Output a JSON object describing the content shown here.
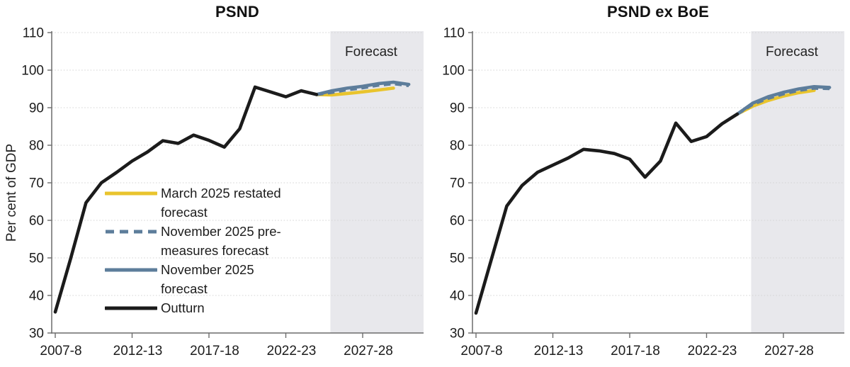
{
  "accent_colors": {
    "outturn": "#1b1b1b",
    "march_forecast": "#e9c42d",
    "november_forecast": "#5d7d9b",
    "forecast_band": "#e8e8ec",
    "gridline": "#d5d5d5",
    "axis": "#6b6b6b",
    "text": "#1c1c1c"
  },
  "chart_data": [
    {
      "type": "line",
      "title": "PSND",
      "xlabel": "",
      "ylabel": "Per cent of GDP",
      "forecast_label": "Forecast",
      "ylim": [
        30,
        110
      ],
      "ytick_step": 10,
      "grid": "dotted-horizontal",
      "legend_position": "inside-left-bottom",
      "forecast_band_start": "2025-26",
      "categories": [
        "2007-08",
        "2008-09",
        "2009-10",
        "2010-11",
        "2011-12",
        "2012-13",
        "2013-14",
        "2014-15",
        "2015-16",
        "2016-17",
        "2017-18",
        "2018-19",
        "2019-20",
        "2020-21",
        "2021-22",
        "2022-23",
        "2023-24",
        "2024-25",
        "2025-26",
        "2026-27",
        "2027-28",
        "2028-29",
        "2029-30",
        "2030-31"
      ],
      "xtick_labels": [
        "2007-8",
        "2012-13",
        "2017-18",
        "2022-23",
        "2027-28"
      ],
      "xtick_indices": [
        0,
        5,
        10,
        15,
        20
      ],
      "series": [
        {
          "name": "March 2025 restated forecast",
          "color": "#e9c42d",
          "style": "solid",
          "start_year": "2024-25",
          "start_index": 17,
          "values": [
            93.5,
            93.4,
            93.8,
            94.2,
            94.7,
            95.2
          ]
        },
        {
          "name": "November 2025 pre-measures forecast",
          "color": "#5d7d9b",
          "style": "dashed",
          "start_year": "2024-25",
          "start_index": 17,
          "values": [
            93.5,
            94.1,
            94.8,
            95.3,
            96.0,
            96.4,
            95.9
          ]
        },
        {
          "name": "November 2025 forecast",
          "color": "#5d7d9b",
          "style": "solid",
          "start_year": "2024-25",
          "start_index": 17,
          "values": [
            93.5,
            94.5,
            95.2,
            95.7,
            96.4,
            96.8,
            96.2
          ]
        },
        {
          "name": "Outturn",
          "color": "#1b1b1b",
          "style": "solid",
          "start_year": "2007-08",
          "start_index": 0,
          "values": [
            35.6,
            49.8,
            64.7,
            70.0,
            72.8,
            75.8,
            78.2,
            81.2,
            80.5,
            82.7,
            81.3,
            79.5,
            84.4,
            95.5,
            94.2,
            92.9,
            94.5,
            93.5
          ]
        }
      ]
    },
    {
      "type": "line",
      "title": "PSND ex BoE",
      "xlabel": "",
      "ylabel": "",
      "forecast_label": "Forecast",
      "ylim": [
        30,
        110
      ],
      "ytick_step": 10,
      "grid": "dotted-horizontal",
      "legend_position": "none",
      "forecast_band_start": "2025-26",
      "categories": [
        "2007-08",
        "2008-09",
        "2009-10",
        "2010-11",
        "2011-12",
        "2012-13",
        "2013-14",
        "2014-15",
        "2015-16",
        "2016-17",
        "2017-18",
        "2018-19",
        "2019-20",
        "2020-21",
        "2021-22",
        "2022-23",
        "2023-24",
        "2024-25",
        "2025-26",
        "2026-27",
        "2027-28",
        "2028-29",
        "2029-30",
        "2030-31"
      ],
      "xtick_labels": [
        "2007-8",
        "2012-13",
        "2017-18",
        "2022-23",
        "2027-28"
      ],
      "xtick_indices": [
        0,
        5,
        10,
        15,
        20
      ],
      "series": [
        {
          "name": "March 2025 restated forecast",
          "color": "#e9c42d",
          "style": "solid",
          "start_year": "2024-25",
          "start_index": 17,
          "values": [
            88.3,
            90.4,
            91.9,
            93.1,
            94.0,
            94.6
          ]
        },
        {
          "name": "November 2025 pre-measures forecast",
          "color": "#5d7d9b",
          "style": "dashed",
          "start_year": "2024-25",
          "start_index": 17,
          "values": [
            88.3,
            90.9,
            92.5,
            93.7,
            94.6,
            95.2,
            95.1
          ]
        },
        {
          "name": "November 2025 forecast",
          "color": "#5d7d9b",
          "style": "solid",
          "start_year": "2024-25",
          "start_index": 17,
          "values": [
            88.3,
            91.2,
            92.9,
            94.1,
            95.0,
            95.6,
            95.4
          ]
        },
        {
          "name": "Outturn",
          "color": "#1b1b1b",
          "style": "solid",
          "start_year": "2007-08",
          "start_index": 0,
          "values": [
            35.3,
            49.6,
            63.8,
            69.3,
            72.8,
            74.7,
            76.6,
            78.9,
            78.5,
            77.8,
            76.3,
            71.5,
            75.8,
            85.9,
            81.0,
            82.3,
            85.7,
            88.3
          ]
        }
      ]
    }
  ],
  "legend": {
    "chart_index": 0,
    "items": [
      {
        "series_index": 0,
        "label": "March 2025 restated forecast"
      },
      {
        "series_index": 1,
        "label": "November 2025 pre-measures forecast"
      },
      {
        "series_index": 2,
        "label": "November 2025 forecast"
      },
      {
        "series_index": 3,
        "label": "Outturn"
      }
    ]
  }
}
